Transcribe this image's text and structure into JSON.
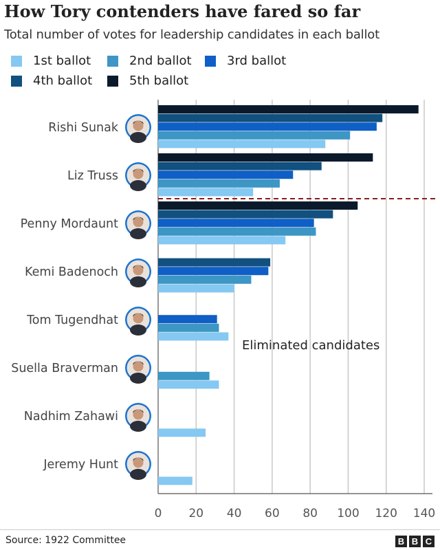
{
  "chart_data": {
    "type": "bar",
    "orientation": "horizontal",
    "title": "How Tory contenders have fared so far",
    "subtitle": "Total number of votes for leadership candidates in each ballot",
    "categories": [
      "Rishi Sunak",
      "Liz Truss",
      "Penny Mordaunt",
      "Kemi Badenoch",
      "Tom Tugendhat",
      "Suella Braverman",
      "Nadhim Zahawi",
      "Jeremy Hunt"
    ],
    "series": [
      {
        "name": "1st ballot",
        "color": "#85c8f2",
        "values": [
          88,
          50,
          67,
          40,
          37,
          32,
          25,
          18
        ]
      },
      {
        "name": "2nd ballot",
        "color": "#3d96c4",
        "values": [
          101,
          64,
          83,
          49,
          32,
          27,
          null,
          null
        ]
      },
      {
        "name": "3rd ballot",
        "color": "#0f5fc6",
        "values": [
          115,
          71,
          82,
          58,
          31,
          null,
          null,
          null
        ]
      },
      {
        "name": "4th ballot",
        "color": "#11507f",
        "values": [
          118,
          86,
          92,
          59,
          null,
          null,
          null,
          null
        ]
      },
      {
        "name": "5th ballot",
        "color": "#0b1a2b",
        "values": [
          137,
          113,
          105,
          null,
          null,
          null,
          null,
          null
        ]
      }
    ],
    "xlim": [
      0,
      140
    ],
    "xticks": [
      0,
      20,
      40,
      60,
      80,
      100,
      120,
      140
    ],
    "grid": true,
    "legend_placement": "top-left",
    "annotation": "Eliminated candidates",
    "divider_color": "#8b1a1a",
    "source": "Source: 1922 Committee"
  },
  "branding": [
    "B",
    "B",
    "C"
  ]
}
